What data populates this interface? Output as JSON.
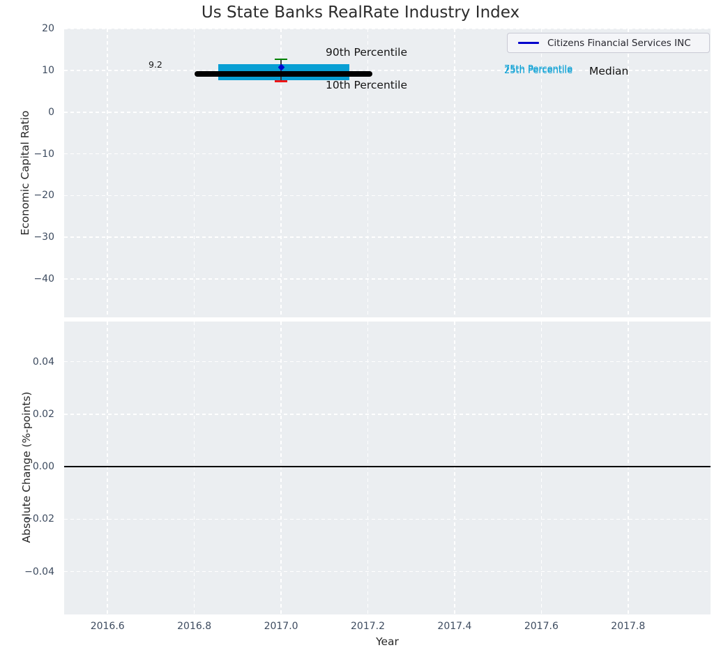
{
  "figure": {
    "title": "Us State Banks RealRate Industry Index",
    "colors": {
      "panel_bg": "#ebeef1",
      "grid": "#ffffff",
      "tick_label": "#3d4b5f",
      "title_text": "#2c2c2c",
      "box_fill": "#089fd4",
      "median_line": "#000000",
      "p90_cap": "#008000",
      "p10_cap": "#ed1515",
      "whisker": "#3a3a3a",
      "company_marker": "#0000cc",
      "zero_line": "#000000",
      "cyan_text": "#089fd4"
    }
  },
  "legend": {
    "items": [
      {
        "label": "Citizens Financial Services INC",
        "color": "#0000cc"
      }
    ]
  },
  "annotations": {
    "company_value_label": "9.2",
    "p90_label": "90th Percentile",
    "p10_label": "10th Percentile",
    "p75_label": "75th Percentile",
    "p25_label": "25th Percentile",
    "median_label": "Median"
  },
  "chart_data": [
    {
      "type": "line",
      "panel": "top",
      "title": "Us State Banks RealRate Industry Index",
      "xlabel": "Year",
      "ylabel": "Economic Capital Ratio",
      "xlim": [
        2016.5,
        2017.99
      ],
      "ylim": [
        -49.2,
        20.05
      ],
      "xticks": [
        2016.6,
        2016.8,
        2017.0,
        2017.2,
        2017.4,
        2017.6,
        2017.8
      ],
      "yticks": [
        20,
        10,
        0,
        -10,
        -20,
        -30,
        -40
      ],
      "grid": true,
      "legend_position": "upper right",
      "series": [
        {
          "name": "Citizens Financial Services INC",
          "x": [
            2017.0
          ],
          "y": [
            9.2
          ],
          "color": "#0000cc"
        }
      ],
      "industry_box": {
        "year": 2017.0,
        "median": 9.2,
        "q1": 7.7,
        "q3": 11.5,
        "p10": 7.45,
        "p90": 12.7,
        "median_span_years": [
          2016.8,
          2017.21
        ],
        "box_span_years": [
          2016.855,
          2017.158
        ],
        "cap_halfwidth_years": 0.0145
      }
    },
    {
      "type": "line",
      "panel": "bottom",
      "xlabel": "Year",
      "ylabel": "Absolute Change (%-points)",
      "xlim": [
        2016.5,
        2017.99
      ],
      "ylim": [
        -0.0563,
        0.0553
      ],
      "xticks": [
        2016.6,
        2016.8,
        2017.0,
        2017.2,
        2017.4,
        2017.6,
        2017.8
      ],
      "yticks": [
        0.04,
        0.02,
        0.0,
        -0.02,
        -0.04
      ],
      "grid": true,
      "zero_line": 0.0,
      "series": []
    }
  ]
}
